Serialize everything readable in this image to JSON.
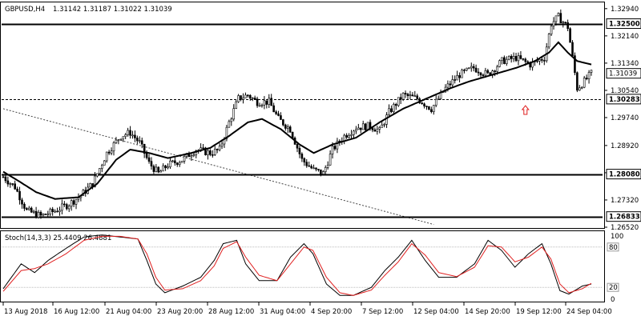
{
  "header": {
    "symbol": "GBPUSD,H4",
    "ohlc": "1.31142 1.31187 1.31022 1.31039"
  },
  "chart_data": [
    {
      "type": "candlestick",
      "symbol": "GBPUSD",
      "timeframe": "H4",
      "ylim": [
        1.2652,
        1.331
      ],
      "y_ticks": [
        1.3294,
        1.3214,
        1.3134,
        1.3054,
        1.2974,
        1.2892,
        1.2812,
        1.2732,
        1.2652
      ],
      "x_ticks": [
        "13 Aug 2018",
        "16 Aug 12:00",
        "21 Aug 04:00",
        "23 Aug 20:00",
        "28 Aug 12:00",
        "31 Aug 04:00",
        "4 Sep 20:00",
        "7 Sep 12:00",
        "12 Sep 04:00",
        "14 Sep 20:00",
        "19 Sep 12:00",
        "24 Sep 04:00"
      ],
      "current_price": "1.31039",
      "levels": [
        {
          "price": 1.325,
          "label": "1.32500",
          "style": "solid"
        },
        {
          "price": 1.30283,
          "label": "1.30283",
          "style": "dashed"
        },
        {
          "price": 1.2808,
          "label": "1.28080",
          "style": "solid"
        },
        {
          "price": 1.26833,
          "label": "1.26833",
          "style": "solid"
        }
      ],
      "trendline": {
        "from": [
          0,
          1.3
        ],
        "to": [
          183,
          1.266
        ]
      },
      "moving_average_anchors": [
        [
          0,
          1.2815
        ],
        [
          6,
          1.279
        ],
        [
          14,
          1.2755
        ],
        [
          22,
          1.2735
        ],
        [
          32,
          1.274
        ],
        [
          40,
          1.278
        ],
        [
          48,
          1.285
        ],
        [
          54,
          1.288
        ],
        [
          62,
          1.287
        ],
        [
          70,
          1.2855
        ],
        [
          80,
          1.287
        ],
        [
          88,
          1.2885
        ],
        [
          96,
          1.292
        ],
        [
          104,
          1.296
        ],
        [
          110,
          1.297
        ],
        [
          118,
          1.294
        ],
        [
          126,
          1.2895
        ],
        [
          132,
          1.287
        ],
        [
          140,
          1.2895
        ],
        [
          150,
          1.2915
        ],
        [
          160,
          1.296
        ],
        [
          170,
          1.3
        ],
        [
          180,
          1.303
        ],
        [
          190,
          1.306
        ],
        [
          198,
          1.308
        ],
        [
          208,
          1.31
        ],
        [
          218,
          1.312
        ],
        [
          226,
          1.314
        ],
        [
          232,
          1.3165
        ],
        [
          236,
          1.3195
        ],
        [
          240,
          1.3165
        ],
        [
          244,
          1.314
        ],
        [
          250,
          1.313
        ]
      ],
      "price_anchors": [
        [
          0,
          1.28
        ],
        [
          5,
          1.277
        ],
        [
          10,
          1.27
        ],
        [
          16,
          1.2685
        ],
        [
          22,
          1.27
        ],
        [
          28,
          1.272
        ],
        [
          33,
          1.2745
        ],
        [
          38,
          1.278
        ],
        [
          44,
          1.287
        ],
        [
          50,
          1.292
        ],
        [
          54,
          1.293
        ],
        [
          58,
          1.29
        ],
        [
          62,
          1.284
        ],
        [
          66,
          1.281
        ],
        [
          70,
          1.2835
        ],
        [
          76,
          1.285
        ],
        [
          82,
          1.288
        ],
        [
          88,
          1.287
        ],
        [
          92,
          1.288
        ],
        [
          96,
          1.296
        ],
        [
          100,
          1.303
        ],
        [
          104,
          1.304
        ],
        [
          108,
          1.302
        ],
        [
          113,
          1.302
        ],
        [
          117,
          1.297
        ],
        [
          122,
          1.294
        ],
        [
          127,
          1.285
        ],
        [
          132,
          1.282
        ],
        [
          136,
          1.281
        ],
        [
          140,
          1.288
        ],
        [
          145,
          1.292
        ],
        [
          150,
          1.2945
        ],
        [
          156,
          1.295
        ],
        [
          160,
          1.2935
        ],
        [
          164,
          1.299
        ],
        [
          170,
          1.304
        ],
        [
          176,
          1.303
        ],
        [
          182,
          1.3
        ],
        [
          188,
          1.306
        ],
        [
          194,
          1.31
        ],
        [
          200,
          1.312
        ],
        [
          206,
          1.31
        ],
        [
          212,
          1.314
        ],
        [
          218,
          1.315
        ],
        [
          224,
          1.313
        ],
        [
          230,
          1.315
        ],
        [
          233,
          1.325
        ],
        [
          236,
          1.327
        ],
        [
          240,
          1.324
        ],
        [
          242,
          1.315
        ],
        [
          244,
          1.306
        ],
        [
          247,
          1.308
        ],
        [
          250,
          1.3104
        ]
      ],
      "candle_count": 251,
      "marker": {
        "type": "up-arrow",
        "index": 222,
        "price": 1.2995,
        "color": "#e02020"
      }
    },
    {
      "type": "line",
      "indicator": "Stoch(14,3,3)",
      "label": "Stoch(14,3,3) 25.4409 26.4881",
      "ylim": [
        0,
        100
      ],
      "y_ticks": [
        100,
        80,
        20,
        0
      ],
      "series": [
        {
          "name": "Main",
          "color": "#000000",
          "anchors": [
            [
              0,
              18
            ],
            [
              8,
              55
            ],
            [
              14,
              42
            ],
            [
              20,
              60
            ],
            [
              28,
              78
            ],
            [
              36,
              95
            ],
            [
              44,
              98
            ],
            [
              52,
              95
            ],
            [
              60,
              92
            ],
            [
              64,
              60
            ],
            [
              68,
              25
            ],
            [
              72,
              12
            ],
            [
              80,
              22
            ],
            [
              88,
              35
            ],
            [
              94,
              60
            ],
            [
              98,
              85
            ],
            [
              104,
              90
            ],
            [
              108,
              55
            ],
            [
              114,
              30
            ],
            [
              122,
              30
            ],
            [
              128,
              65
            ],
            [
              134,
              85
            ],
            [
              138,
              70
            ],
            [
              144,
              25
            ],
            [
              150,
              8
            ],
            [
              156,
              8
            ],
            [
              164,
              20
            ],
            [
              170,
              45
            ],
            [
              176,
              65
            ],
            [
              182,
              90
            ],
            [
              188,
              60
            ],
            [
              194,
              35
            ],
            [
              202,
              35
            ],
            [
              210,
              55
            ],
            [
              216,
              90
            ],
            [
              222,
              75
            ],
            [
              228,
              50
            ],
            [
              234,
              70
            ],
            [
              240,
              85
            ],
            [
              244,
              55
            ],
            [
              248,
              15
            ],
            [
              252,
              10
            ],
            [
              258,
              22
            ],
            [
              262,
              25
            ]
          ]
        },
        {
          "name": "Signal",
          "color": "#e02020",
          "anchors": [
            [
              0,
              14
            ],
            [
              8,
              45
            ],
            [
              14,
              48
            ],
            [
              20,
              55
            ],
            [
              28,
              70
            ],
            [
              36,
              90
            ],
            [
              44,
              96
            ],
            [
              52,
              96
            ],
            [
              60,
              92
            ],
            [
              64,
              70
            ],
            [
              68,
              35
            ],
            [
              72,
              16
            ],
            [
              80,
              18
            ],
            [
              88,
              30
            ],
            [
              94,
              52
            ],
            [
              98,
              78
            ],
            [
              104,
              88
            ],
            [
              108,
              65
            ],
            [
              114,
              38
            ],
            [
              122,
              30
            ],
            [
              128,
              55
            ],
            [
              134,
              80
            ],
            [
              138,
              75
            ],
            [
              144,
              35
            ],
            [
              150,
              12
            ],
            [
              156,
              8
            ],
            [
              164,
              16
            ],
            [
              170,
              38
            ],
            [
              176,
              58
            ],
            [
              182,
              85
            ],
            [
              188,
              68
            ],
            [
              194,
              42
            ],
            [
              202,
              36
            ],
            [
              210,
              50
            ],
            [
              216,
              82
            ],
            [
              222,
              80
            ],
            [
              228,
              58
            ],
            [
              234,
              65
            ],
            [
              240,
              80
            ],
            [
              244,
              62
            ],
            [
              248,
              25
            ],
            [
              252,
              12
            ],
            [
              258,
              18
            ],
            [
              262,
              26
            ]
          ]
        }
      ]
    }
  ]
}
